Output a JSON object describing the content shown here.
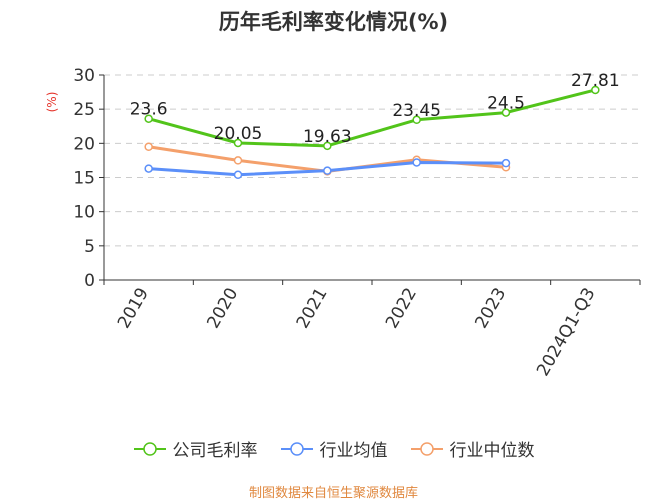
{
  "chart_data": {
    "type": "line",
    "title": "历年毛利率变化情况(%)",
    "ylabel": "(%)",
    "xlabel": "",
    "categories": [
      "2019",
      "2020",
      "2021",
      "2022",
      "2023",
      "2024Q1-Q3"
    ],
    "ylim": [
      0,
      30
    ],
    "yticks": [
      0,
      5,
      10,
      15,
      20,
      25,
      30
    ],
    "grid": true,
    "legend_position": "bottom",
    "series": [
      {
        "name": "公司毛利率",
        "color": "#52c41a",
        "values": [
          23.6,
          20.05,
          19.63,
          23.45,
          24.5,
          27.81
        ],
        "labels": [
          "23.6",
          "20.05",
          "19.63",
          "23.45",
          "24.5",
          "27.81"
        ]
      },
      {
        "name": "行业均值",
        "color": "#5b8ff9",
        "values": [
          16.3,
          15.4,
          16.0,
          17.2,
          17.1,
          null
        ]
      },
      {
        "name": "行业中位数",
        "color": "#f4a06b",
        "values": [
          19.5,
          17.5,
          15.9,
          17.6,
          16.5,
          null
        ]
      }
    ]
  },
  "source": "制图数据来自恒生聚源数据库"
}
